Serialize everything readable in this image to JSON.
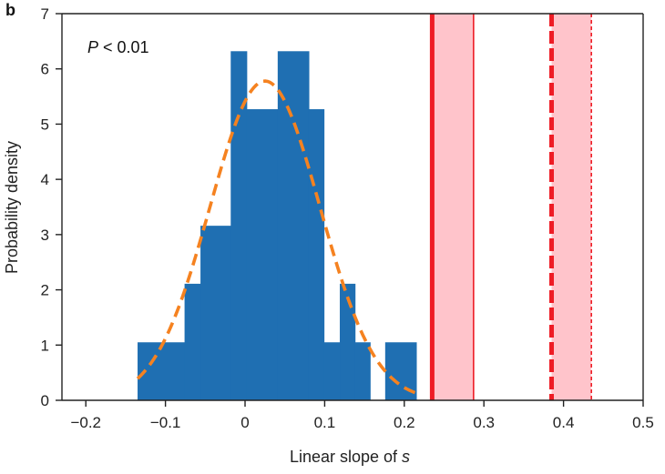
{
  "chart_data": {
    "type": "histogram",
    "panel_label": "b",
    "annotation": {
      "italic": "P",
      "rest": " < 0.01"
    },
    "xlabel": {
      "text": "Linear slope of ",
      "italic": "s"
    },
    "ylabel": "Probability density",
    "xlim": [
      -0.23,
      0.5
    ],
    "ylim": [
      0,
      7
    ],
    "xticks": [
      -0.2,
      -0.1,
      0,
      0.1,
      0.2,
      0.3,
      0.4,
      0.5
    ],
    "xtick_labels": [
      "−0.2",
      "−0.1",
      "0",
      "0.1",
      "0.2",
      "0.3",
      "0.4",
      "0.5"
    ],
    "yticks": [
      0,
      1,
      2,
      3,
      4,
      5,
      6,
      7
    ],
    "ytick_labels": [
      "0",
      "1",
      "2",
      "3",
      "4",
      "5",
      "6",
      "7"
    ],
    "colors": {
      "histogram": "#1f6fb2",
      "fit": "#f58220",
      "observed": "#ee1c25",
      "band": "#ffc4cb",
      "axis": "#222222"
    },
    "histogram": {
      "bins": [
        {
          "x0": -0.135,
          "x1": -0.076,
          "density": 1.05
        },
        {
          "x0": -0.076,
          "x1": -0.056,
          "density": 2.11
        },
        {
          "x0": -0.056,
          "x1": -0.018,
          "density": 3.16
        },
        {
          "x0": -0.018,
          "x1": 0.002,
          "density": 6.32
        },
        {
          "x0": 0.002,
          "x1": 0.041,
          "density": 5.27
        },
        {
          "x0": 0.041,
          "x1": 0.08,
          "density": 6.32
        },
        {
          "x0": 0.08,
          "x1": 0.099,
          "density": 5.27
        },
        {
          "x0": 0.099,
          "x1": 0.119,
          "density": 1.05
        },
        {
          "x0": 0.119,
          "x1": 0.138,
          "density": 2.11
        },
        {
          "x0": 0.138,
          "x1": 0.157,
          "density": 1.05
        },
        {
          "x0": 0.157,
          "x1": 0.176,
          "density": 0.0
        },
        {
          "x0": 0.176,
          "x1": 0.215,
          "density": 1.05
        }
      ]
    },
    "normal_fit": {
      "mean": 0.025,
      "sd": 0.069,
      "peak_density": 5.78,
      "x_range": [
        -0.135,
        0.215
      ],
      "style": "dashed"
    },
    "observed_slopes": [
      {
        "name": "observed-solid",
        "value": 0.235,
        "band": [
          0.235,
          0.287
        ],
        "style": "solid"
      },
      {
        "name": "observed-dashed",
        "value": 0.385,
        "band": [
          0.385,
          0.435
        ],
        "style": "dashed"
      }
    ]
  }
}
